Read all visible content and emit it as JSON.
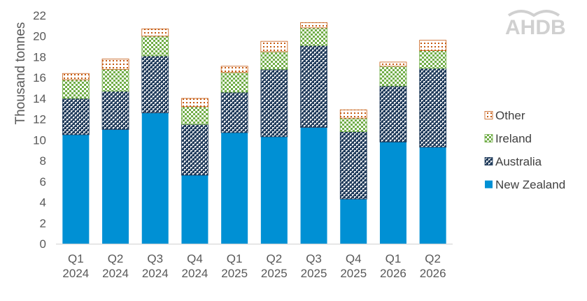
{
  "logo": {
    "text": "AHDB"
  },
  "chart_data": {
    "type": "bar",
    "stacked": true,
    "ylabel": "Thousand tonnes",
    "xlabel": "",
    "ylim": [
      0,
      22
    ],
    "yticks": [
      0,
      2,
      4,
      6,
      8,
      10,
      12,
      14,
      16,
      18,
      20,
      22
    ],
    "grid": false,
    "legend_position": "right",
    "categories": [
      [
        "Q1",
        "2024"
      ],
      [
        "Q2",
        "2024"
      ],
      [
        "Q3",
        "2024"
      ],
      [
        "Q4",
        "2024"
      ],
      [
        "Q1",
        "2025"
      ],
      [
        "Q2",
        "2025"
      ],
      [
        "Q3",
        "2025"
      ],
      [
        "Q4",
        "2025"
      ],
      [
        "Q1",
        "2026"
      ],
      [
        "Q2",
        "2026"
      ]
    ],
    "series": [
      {
        "name": "New Zealand",
        "color": "#0090d4",
        "pattern": "solid",
        "values": [
          10.5,
          11.0,
          12.6,
          6.6,
          10.7,
          10.3,
          11.2,
          4.3,
          9.8,
          9.3
        ]
      },
      {
        "name": "Australia",
        "color": "#1f3a5a",
        "pattern": "diagonal-checker",
        "values": [
          3.5,
          3.7,
          5.5,
          4.9,
          3.9,
          6.5,
          7.9,
          6.5,
          5.4,
          7.6
        ]
      },
      {
        "name": "Ireland",
        "color": "#70ad47",
        "pattern": "green-dots",
        "values": [
          1.8,
          2.1,
          1.9,
          1.7,
          1.9,
          1.7,
          1.7,
          1.3,
          1.9,
          1.7
        ]
      },
      {
        "name": "Other",
        "color": "#c55a11",
        "pattern": "brown-dots",
        "values": [
          0.6,
          1.0,
          0.7,
          0.8,
          0.6,
          1.0,
          0.5,
          0.8,
          0.4,
          1.0
        ]
      }
    ]
  }
}
